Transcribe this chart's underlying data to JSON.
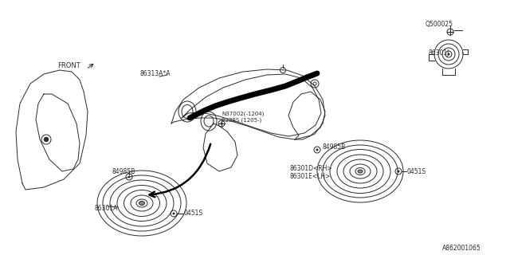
{
  "bg_color": "#ffffff",
  "line_color": "#2a2a2a",
  "text_color": "#2a2a2a",
  "part_number": "A862001065",
  "labels": {
    "front": "FRONT",
    "86313A": "86313A*A",
    "N37002": "N37002(-1204)",
    "0238S": "0238S (1205-)",
    "84985B_left": "84985B",
    "84985B_right": "84985B",
    "86301A": "86301A",
    "86301D": "86301D<RH>",
    "86301E": "86301E<LH>",
    "0451S_L": "0451S",
    "0451S_R": "0451S",
    "Q500025": "Q500025",
    "86301J": "86301J"
  }
}
